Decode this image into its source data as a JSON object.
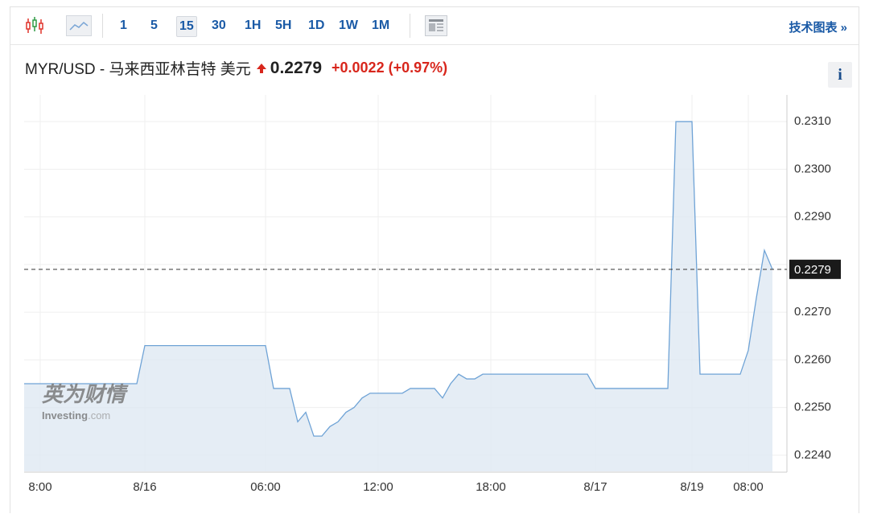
{
  "toolbar": {
    "intervals": [
      "1",
      "5",
      "15",
      "30",
      "1H",
      "5H",
      "1D",
      "1W",
      "1M"
    ],
    "selected": "15",
    "link": "技术图表 »"
  },
  "header": {
    "symbol": "MYR/USD - 马来西亚林吉特 美元",
    "price": "0.2279",
    "change": "+0.0022 (+0.97%)",
    "info": "i"
  },
  "watermark": {
    "brand": "英为财情",
    "site": "Investing",
    "domain": ".com"
  },
  "chart_data": {
    "type": "area",
    "color": "#6fa3d6",
    "fill": "#dfe9f3",
    "categories": [
      null,
      null,
      "8:00",
      null,
      null,
      null,
      null,
      null,
      null,
      null,
      null,
      null,
      null,
      null,
      null,
      "8/16",
      null,
      null,
      null,
      null,
      null,
      null,
      null,
      null,
      null,
      null,
      null,
      null,
      null,
      null,
      "06:00",
      null,
      null,
      null,
      null,
      null,
      null,
      null,
      null,
      null,
      null,
      null,
      null,
      null,
      "12:00",
      null,
      null,
      null,
      null,
      null,
      null,
      null,
      null,
      null,
      null,
      null,
      null,
      null,
      "18:00",
      null,
      null,
      null,
      null,
      null,
      null,
      null,
      null,
      null,
      null,
      null,
      null,
      "8/17",
      null,
      null,
      null,
      null,
      null,
      null,
      null,
      null,
      null,
      null,
      null,
      "8/19",
      null,
      null,
      null,
      null,
      null,
      null,
      "08:00",
      null,
      null,
      null
    ],
    "values": [
      0.2255,
      0.2255,
      0.2255,
      0.2255,
      0.2255,
      0.2255,
      0.2255,
      0.2255,
      0.2255,
      0.2255,
      0.2255,
      0.2255,
      0.2255,
      0.2255,
      0.2255,
      0.2263,
      0.2263,
      0.2263,
      0.2263,
      0.2263,
      0.2263,
      0.2263,
      0.2263,
      0.2263,
      0.2263,
      0.2263,
      0.2263,
      0.2263,
      0.2263,
      0.2263,
      0.2263,
      0.2254,
      0.2254,
      0.2254,
      0.2247,
      0.2249,
      0.2244,
      0.2244,
      0.2246,
      0.2247,
      0.2249,
      0.225,
      0.2252,
      0.2253,
      0.2253,
      0.2253,
      0.2253,
      0.2253,
      0.2254,
      0.2254,
      0.2254,
      0.2254,
      0.2252,
      0.2255,
      0.2257,
      0.2256,
      0.2256,
      0.2257,
      0.2257,
      0.2257,
      0.2257,
      0.2257,
      0.2257,
      0.2257,
      0.2257,
      0.2257,
      0.2257,
      0.2257,
      0.2257,
      0.2257,
      0.2257,
      0.2254,
      0.2254,
      0.2254,
      0.2254,
      0.2254,
      0.2254,
      0.2254,
      0.2254,
      0.2254,
      0.2254,
      0.231,
      0.231,
      0.231,
      0.2257,
      0.2257,
      0.2257,
      0.2257,
      0.2257,
      0.2257,
      0.2262,
      0.2273,
      0.2283,
      0.2279
    ],
    "last_value": 0.2279,
    "ylim": [
      0.22366,
      0.23156
    ],
    "yticks": [
      {
        "value": 0.224,
        "label": "0.2240"
      },
      {
        "value": 0.225,
        "label": "0.2250"
      },
      {
        "value": 0.226,
        "label": "0.2260"
      },
      {
        "value": 0.227,
        "label": "0.2270"
      },
      {
        "value": 0.228,
        "label": "0.2280"
      },
      {
        "value": 0.229,
        "label": "0.2290"
      },
      {
        "value": 0.23,
        "label": "0.2300"
      },
      {
        "value": 0.231,
        "label": "0.2310"
      }
    ],
    "grid": true
  }
}
